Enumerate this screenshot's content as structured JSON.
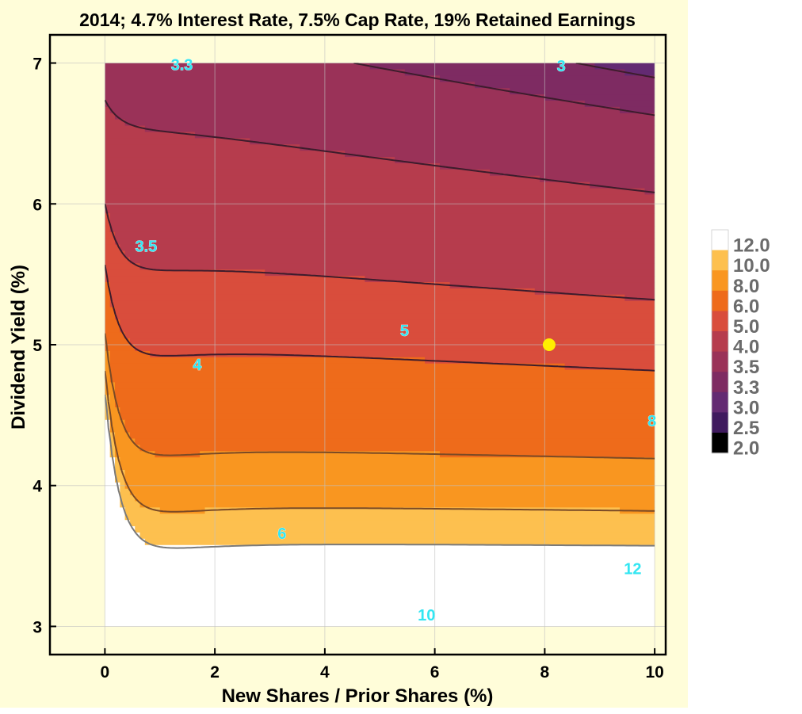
{
  "chart_data": {
    "type": "contour",
    "title": "2014; 4.7% Interest Rate, 7.5% Cap Rate, 19% Retained Earnings",
    "xlabel": "New Shares / Prior Shares (%)",
    "ylabel": "Dividend Yield (%)",
    "xlim": [
      -1,
      10.2
    ],
    "ylim": [
      2.8,
      7.2
    ],
    "data_xrange": [
      0,
      10
    ],
    "data_yrange": [
      3,
      7
    ],
    "x_ticks": [
      "0",
      "2",
      "4",
      "6",
      "8",
      "10"
    ],
    "y_ticks": [
      "3",
      "4",
      "5",
      "6",
      "7"
    ],
    "grid": true,
    "contour_levels": [
      2.0,
      2.5,
      3.0,
      3.3,
      3.5,
      4.0,
      5.0,
      6.0,
      8.0,
      10.0,
      12.0
    ],
    "legend": {
      "placement": "right",
      "entries": [
        "12.0",
        "10.0",
        "8.0",
        "6.0",
        "5.0",
        "4.0",
        "3.5",
        "3.3",
        "3.0",
        "2.5",
        "2.0"
      ],
      "colors": [
        "#ffffff",
        "#fdc04f",
        "#f99620",
        "#ee6b1b",
        "#d94d3c",
        "#b63c4d",
        "#9a3258",
        "#7e2b62",
        "#632a72",
        "#3f1a5e",
        "#000000"
      ]
    },
    "contour_labels": [
      {
        "text": "3.3",
        "x": 1.4,
        "y": 6.99
      },
      {
        "text": "3",
        "x": 8.3,
        "y": 6.98
      },
      {
        "text": "3.5",
        "x": 0.75,
        "y": 5.7
      },
      {
        "text": "4",
        "x": 1.68,
        "y": 4.86
      },
      {
        "text": "5",
        "x": 5.45,
        "y": 5.1
      },
      {
        "text": "6",
        "x": 3.22,
        "y": 3.66
      },
      {
        "text": "8",
        "x": 9.95,
        "y": 4.46
      },
      {
        "text": "10",
        "x": 5.85,
        "y": 3.08
      },
      {
        "text": "12",
        "x": 9.6,
        "y": 3.41
      }
    ],
    "marker": {
      "x": 8.08,
      "y": 5.0,
      "color": "#ffee00"
    }
  }
}
